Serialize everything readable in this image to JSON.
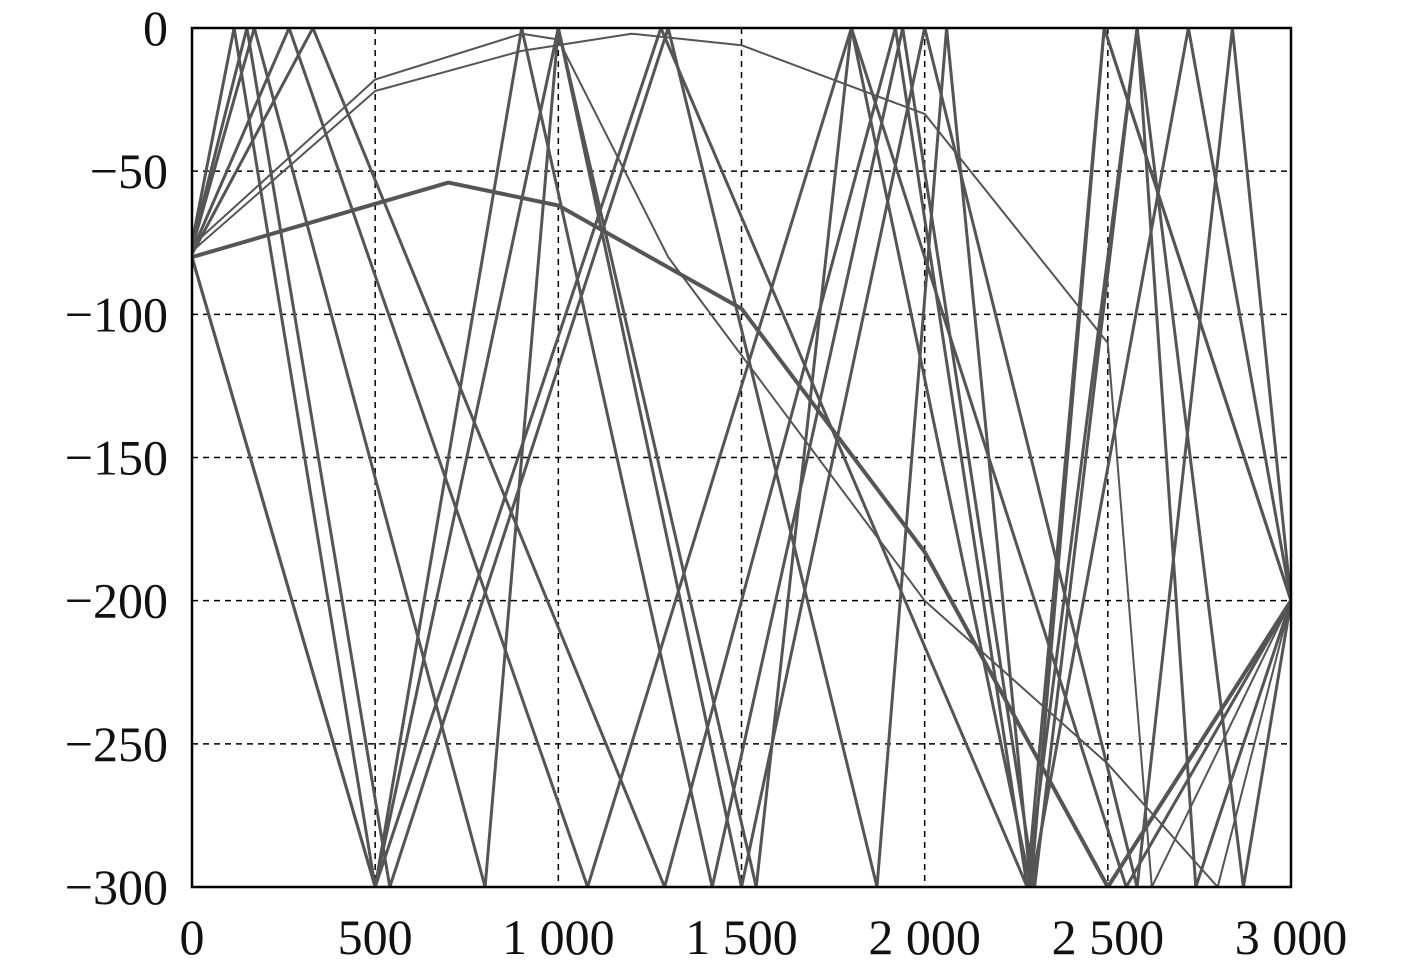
{
  "chart_data": {
    "type": "line",
    "title": "",
    "xlabel": "",
    "ylabel": "",
    "xlim": [
      0,
      3000
    ],
    "ylim": [
      -300,
      0
    ],
    "grid": true,
    "x_ticks": [
      0,
      500,
      1000,
      1500,
      2000,
      2500,
      3000
    ],
    "x_tick_labels": [
      "0",
      "500",
      "1 000",
      "1 500",
      "2 000",
      "2 500",
      "3 000"
    ],
    "y_ticks": [
      0,
      -50,
      -100,
      -150,
      -200,
      -250,
      -300
    ],
    "y_tick_labels": [
      "0",
      "−50",
      "−100",
      "−150",
      "−200",
      "−250",
      "−300"
    ],
    "line_color": "#555555",
    "series": [
      {
        "x": [
          0,
          700,
          1000,
          1500,
          2000,
          2500,
          3000
        ],
        "y": [
          -80,
          -54,
          -62,
          -98,
          -183,
          -300,
          -200
        ]
      },
      {
        "x": [
          0,
          500,
          900,
          1200,
          1500,
          2000,
          2500,
          2620,
          3000
        ],
        "y": [
          -78,
          -22,
          -8,
          -2,
          -6,
          -30,
          -110,
          -300,
          -200
        ]
      },
      {
        "x": [
          0,
          500,
          900,
          1000,
          1300,
          2000,
          2500,
          2800,
          3000
        ],
        "y": [
          -76,
          -18,
          -2,
          -4,
          -80,
          -200,
          -257,
          -300,
          -200
        ]
      },
      {
        "x": [
          0,
          115,
          500,
          1280,
          2280,
          2490,
          3000
        ],
        "y": [
          -75,
          0,
          -300,
          0,
          -300,
          0,
          -200
        ]
      },
      {
        "x": [
          0,
          150,
          540,
          1300,
          1870,
          2060,
          2290,
          2490,
          3000
        ],
        "y": [
          -76,
          0,
          -300,
          0,
          -300,
          0,
          -300,
          0,
          -200
        ]
      },
      {
        "x": [
          0,
          170,
          800,
          1000,
          1540,
          1800,
          2550,
          3000
        ],
        "y": [
          -77,
          0,
          -300,
          0,
          -300,
          0,
          -300,
          -200
        ]
      },
      {
        "x": [
          0,
          265,
          1080,
          1800,
          2290,
          2720,
          3000
        ],
        "y": [
          -78,
          0,
          -300,
          0,
          -300,
          0,
          -200
        ]
      },
      {
        "x": [
          0,
          330,
          1290,
          1920,
          2280,
          2580,
          2870,
          3000
        ],
        "y": [
          -79,
          0,
          -300,
          0,
          -300,
          0,
          -300,
          -200
        ]
      },
      {
        "x": [
          0,
          500,
          900,
          1420,
          1940,
          2300,
          2580,
          2740,
          3000
        ],
        "y": [
          -80,
          -300,
          0,
          -300,
          0,
          -300,
          0,
          -300,
          -200
        ]
      },
      {
        "x": [
          0,
          500,
          1000,
          1500,
          2000,
          2580,
          2840,
          3000
        ],
        "y": [
          -80,
          -300,
          0,
          -300,
          0,
          -300,
          0,
          -200
        ]
      }
    ]
  }
}
